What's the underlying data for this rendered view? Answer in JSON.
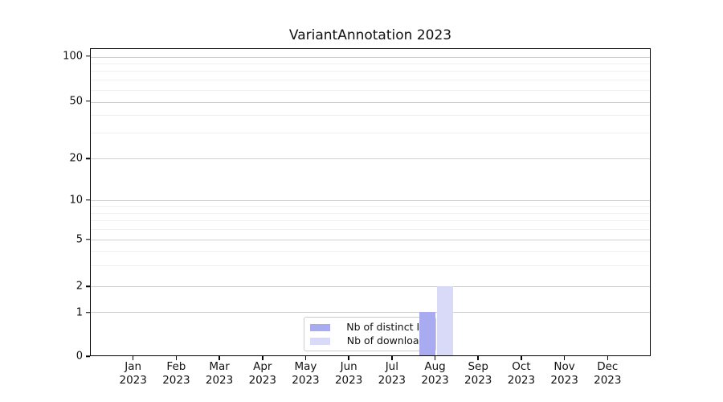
{
  "title": "VariantAnnotation 2023",
  "chart_data": {
    "type": "bar",
    "title": "VariantAnnotation 2023",
    "categories": [
      "Jan",
      "Feb",
      "Mar",
      "Apr",
      "May",
      "Jun",
      "Jul",
      "Aug",
      "Sep",
      "Oct",
      "Nov",
      "Dec"
    ],
    "year": "2023",
    "series": [
      {
        "name": "Nb of distinct IPs",
        "color": "#a9abf0",
        "values": [
          0,
          0,
          0,
          0,
          0,
          0,
          0,
          1,
          0,
          0,
          0,
          0
        ]
      },
      {
        "name": "Nb of downloads",
        "color": "#d9daf8",
        "values": [
          0,
          0,
          0,
          0,
          0,
          0,
          0,
          2,
          0,
          0,
          0,
          0
        ]
      }
    ],
    "xlabel": "",
    "ylabel": "",
    "yscale": "log-like (0,1,2,5,10,20,50,100)",
    "ytick_labels": [
      "100",
      "50",
      "20",
      "10",
      "5",
      "2",
      "1",
      "0"
    ],
    "ylim": [
      0,
      100
    ],
    "grid": "horizontal major + faint log minors",
    "legend_position": "inside plot, lower center-right",
    "colors": {
      "distinct_ips": "#a9abf0",
      "downloads": "#d9daf8",
      "grid_major": "#cfcfcf",
      "grid_minor": "#f0f0f0",
      "spine": "#000000"
    }
  }
}
